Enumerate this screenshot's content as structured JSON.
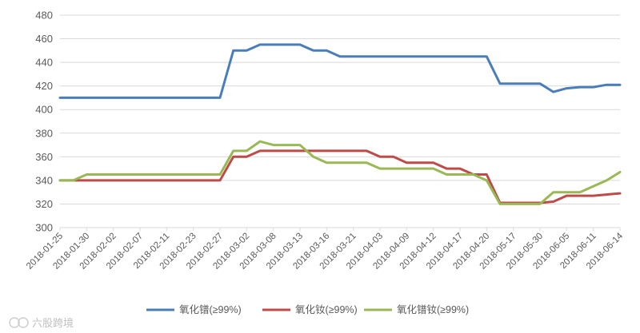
{
  "chart_data": {
    "type": "line",
    "title": "",
    "xlabel": "",
    "ylabel": "",
    "ylim": [
      300,
      480
    ],
    "yticks": [
      300,
      320,
      340,
      360,
      380,
      400,
      420,
      440,
      460,
      480
    ],
    "xticks": [
      "2018-01-25",
      "2018-01-30",
      "2018-02-02",
      "2018-02-07",
      "2018-02-11",
      "2018-02-23",
      "2018-02-27",
      "2018-03-02",
      "2018-03-08",
      "2018-03-13",
      "2018-03-16",
      "2018-03-21",
      "2018-04-03",
      "2018-04-09",
      "2018-04-12",
      "2018-04-17",
      "2018-04-20",
      "2018-05-17",
      "2018-05-30",
      "2018-06-05",
      "2018-06-11",
      "2018-06-14"
    ],
    "grid": "horizontal",
    "legend": "bottom",
    "colors": {
      "series1": "#4a7ebb",
      "series2": "#be4b48",
      "series3": "#98b954",
      "grid": "#d9d9d9",
      "axis": "#d9d9d9"
    },
    "x_index": [
      0,
      0.5,
      1,
      1.5,
      2,
      2.5,
      3,
      3.5,
      4,
      4.5,
      5,
      5.5,
      6,
      6.5,
      7,
      7.5,
      8,
      8.5,
      9,
      9.5,
      10,
      10.5,
      11,
      11.5,
      12,
      12.5,
      13,
      13.5,
      14,
      14.5,
      15,
      15.5,
      16,
      16.5,
      17,
      17.5,
      18,
      18.5,
      19,
      19.5,
      20,
      20.5,
      21
    ],
    "series": [
      {
        "name": "氧化镨(≥99%)",
        "values": [
          410,
          410,
          410,
          410,
          410,
          410,
          410,
          410,
          410,
          410,
          410,
          410,
          410,
          450,
          450,
          455,
          455,
          455,
          455,
          450,
          450,
          445,
          445,
          445,
          445,
          445,
          445,
          445,
          445,
          445,
          445,
          445,
          445,
          422,
          422,
          422,
          422,
          415,
          418,
          419,
          419,
          421,
          421
        ]
      },
      {
        "name": "氧化钕(≥99%)",
        "values": [
          340,
          340,
          340,
          340,
          340,
          340,
          340,
          340,
          340,
          340,
          340,
          340,
          340,
          360,
          360,
          365,
          365,
          365,
          365,
          365,
          365,
          365,
          365,
          365,
          360,
          360,
          355,
          355,
          355,
          350,
          350,
          345,
          345,
          321,
          321,
          321,
          321,
          322,
          327,
          327,
          327,
          328,
          329
        ]
      },
      {
        "name": "氧化镨钕(≥99%)",
        "values": [
          340,
          340,
          345,
          345,
          345,
          345,
          345,
          345,
          345,
          345,
          345,
          345,
          345,
          365,
          365,
          373,
          370,
          370,
          370,
          360,
          355,
          355,
          355,
          355,
          350,
          350,
          350,
          350,
          350,
          345,
          345,
          345,
          340,
          320,
          320,
          320,
          320,
          330,
          330,
          330,
          335,
          340,
          347
        ]
      }
    ]
  },
  "watermark": {
    "text": "六股跨境",
    "icon": "brand-logo-icon"
  }
}
